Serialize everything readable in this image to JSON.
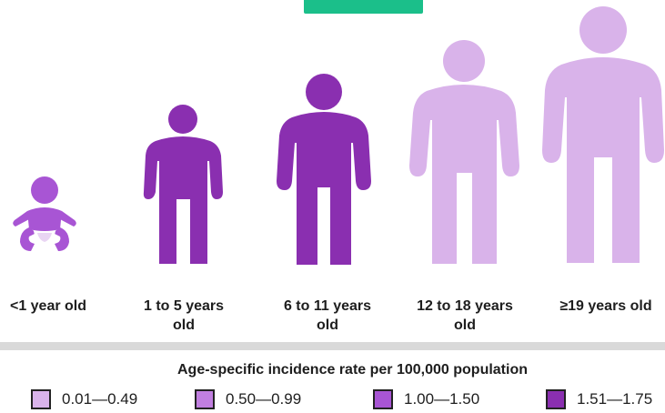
{
  "colors": {
    "tab": "#1bbf8a",
    "light": "#d9b3ea",
    "mid_light": "#c17fe0",
    "mid": "#a855d4",
    "dark": "#8a2fb0"
  },
  "age_groups": [
    {
      "line1": "<1 year old",
      "line2": "",
      "icon": "baby-icon",
      "fill": "#a855d4"
    },
    {
      "line1": "1 to 5 years",
      "line2": "old",
      "icon": "child-icon",
      "fill": "#8a2fb0"
    },
    {
      "line1": "6 to 11 years",
      "line2": "old",
      "icon": "child-icon",
      "fill": "#8a2fb0"
    },
    {
      "line1": "12 to 18 years",
      "line2": "old",
      "icon": "teen-icon",
      "fill": "#d9b3ea"
    },
    {
      "line1": "≥19 years old",
      "line2": "",
      "icon": "adult-icon",
      "fill": "#d9b3ea"
    }
  ],
  "legend": {
    "title": "Age-specific incidence rate per 100,000 population",
    "items": [
      {
        "label": "0.01—0.49",
        "color": "#d9b3ea"
      },
      {
        "label": "0.50—0.99",
        "color": "#c17fe0"
      },
      {
        "label": "1.00—1.50",
        "color": "#a855d4"
      },
      {
        "label": "1.51—1.75",
        "color": "#8a2fb0"
      }
    ]
  }
}
